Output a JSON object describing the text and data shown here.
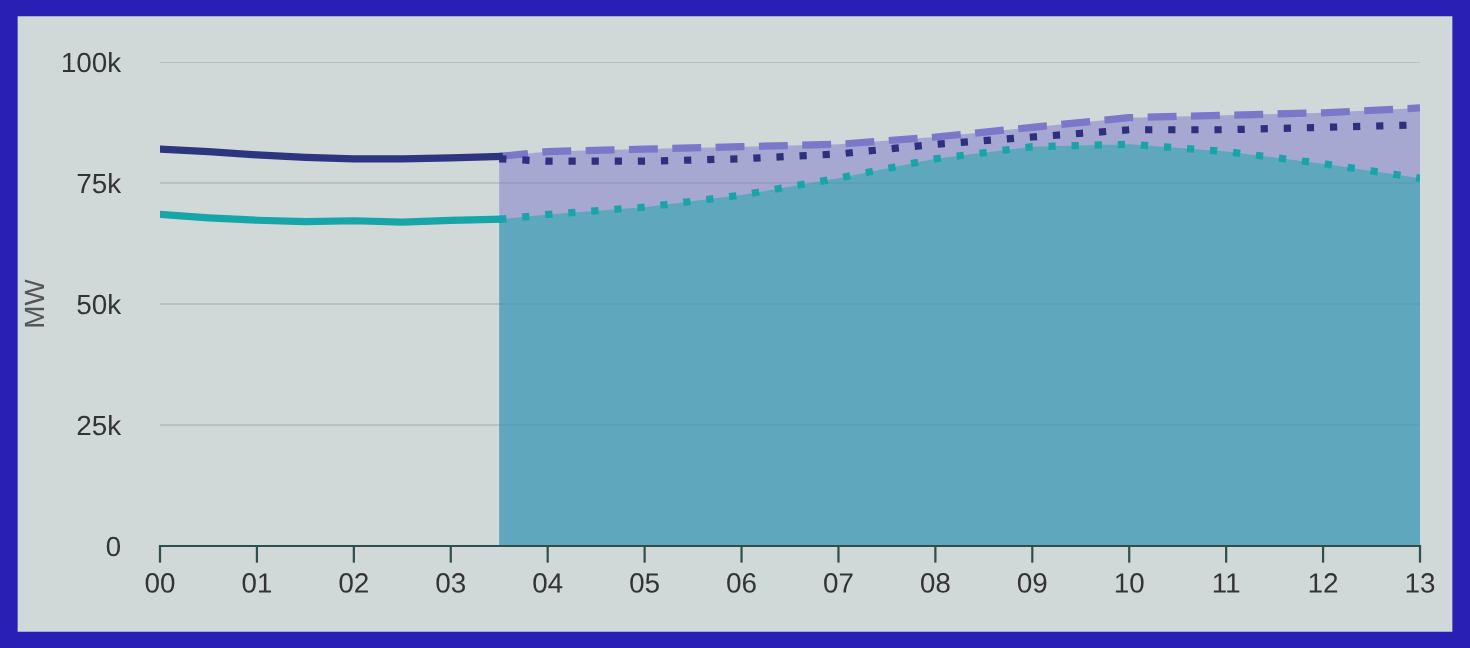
{
  "chart_data": {
    "type": "line",
    "ylabel": "MW",
    "xlim": [
      0,
      13
    ],
    "xticks": [
      {
        "value": 0,
        "label": "00"
      },
      {
        "value": 1,
        "label": "01"
      },
      {
        "value": 2,
        "label": "02"
      },
      {
        "value": 3,
        "label": "03"
      },
      {
        "value": 4,
        "label": "04"
      },
      {
        "value": 5,
        "label": "05"
      },
      {
        "value": 6,
        "label": "06"
      },
      {
        "value": 7,
        "label": "07"
      },
      {
        "value": 8,
        "label": "08"
      },
      {
        "value": 9,
        "label": "09"
      },
      {
        "value": 10,
        "label": "10"
      },
      {
        "value": 11,
        "label": "11"
      },
      {
        "value": 12,
        "label": "12"
      },
      {
        "value": 13,
        "label": "13"
      }
    ],
    "ylim": [
      0,
      100000
    ],
    "yticks": [
      {
        "value": 0,
        "label": "0"
      },
      {
        "value": 25000,
        "label": "25k"
      },
      {
        "value": 50000,
        "label": "50k"
      },
      {
        "value": 75000,
        "label": "75k"
      },
      {
        "value": 100000,
        "label": "100k"
      }
    ],
    "grid": "y",
    "legend": false,
    "marker": "none",
    "series": [
      {
        "type": "area",
        "line_style": "dashed",
        "color": "#7b77c9",
        "x": [
          3.5,
          4,
          5,
          6,
          7,
          8,
          9,
          10,
          11,
          12,
          13
        ],
        "values": [
          80500,
          81500,
          82000,
          82500,
          83000,
          84500,
          86500,
          88500,
          89000,
          89500,
          90500
        ]
      },
      {
        "type": "area",
        "line_style": "dotted",
        "color": "#16a5a8",
        "x": [
          3.5,
          4,
          5,
          6,
          7,
          8,
          9,
          10,
          11,
          12,
          13
        ],
        "values": [
          67500,
          68500,
          70000,
          72500,
          76000,
          80000,
          82500,
          83000,
          81500,
          79000,
          76000
        ]
      },
      {
        "type": "line",
        "line_style": "dotted",
        "color": "#2e2f7e",
        "x": [
          3.5,
          4,
          5,
          6,
          7,
          8,
          9,
          10,
          11,
          12,
          13
        ],
        "values": [
          80000,
          79500,
          79500,
          80000,
          81000,
          83000,
          84500,
          86000,
          86000,
          86500,
          87000
        ]
      },
      {
        "line_style": "solid",
        "color": "#2e3580",
        "x": [
          0,
          0.5,
          1,
          1.5,
          2,
          2.5,
          3,
          3.5
        ],
        "values": [
          82000,
          81500,
          80800,
          80300,
          80000,
          80000,
          80200,
          80500
        ]
      },
      {
        "line_style": "solid",
        "color": "#16a5a8",
        "x": [
          0,
          0.5,
          1,
          1.5,
          2,
          2.5,
          3,
          3.5
        ],
        "values": [
          68500,
          67800,
          67300,
          67000,
          67200,
          66900,
          67300,
          67500
        ]
      }
    ]
  }
}
